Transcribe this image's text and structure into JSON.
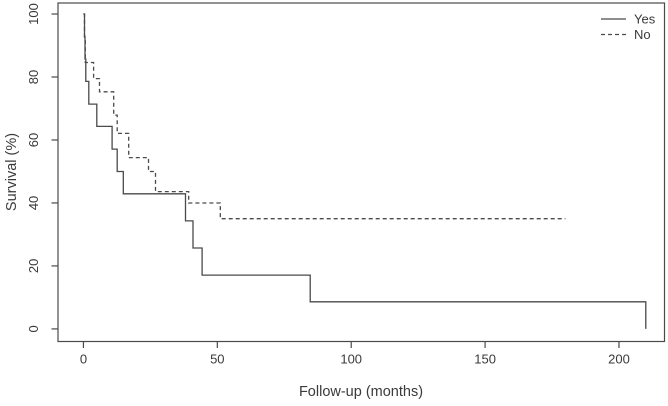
{
  "chart_data": {
    "type": "line",
    "subtype": "kaplan-meier-step-survival",
    "title": "",
    "xlabel": "Follow-up (months)",
    "ylabel": "Survival (%)",
    "xlim": [
      -9.5,
      217
    ],
    "ylim": [
      -4,
      103.5
    ],
    "xticks": [
      0,
      50,
      100,
      150,
      200
    ],
    "yticks": [
      0,
      20,
      40,
      60,
      80,
      100
    ],
    "grid": false,
    "frame": true,
    "legend": {
      "position": "top-right",
      "entries": [
        {
          "label": "Yes",
          "style": "solid"
        },
        {
          "label": "No",
          "style": "dashed"
        }
      ]
    },
    "series": [
      {
        "name": "Yes",
        "line_style": "solid",
        "color": "#4a4a4a",
        "points_note": "x = months, y = survival percent; step function drops at event times",
        "points": [
          [
            0,
            100
          ],
          [
            0.4,
            92.9
          ],
          [
            0.6,
            85.7
          ],
          [
            0.9,
            78.6
          ],
          [
            2.0,
            71.4
          ],
          [
            5.0,
            64.3
          ],
          [
            10.7,
            57.1
          ],
          [
            12.6,
            50.0
          ],
          [
            14.9,
            42.9
          ],
          [
            38.1,
            34.3
          ],
          [
            40.9,
            25.7
          ],
          [
            44.3,
            17.1
          ],
          [
            84.7,
            8.6
          ],
          [
            210,
            0
          ]
        ]
      },
      {
        "name": "No",
        "line_style": "dashed",
        "color": "#4a4a4a",
        "points_note": "x = months, y = survival percent; curve ends (censored) at 180 months",
        "points": [
          [
            0,
            100
          ],
          [
            0.4,
            92.3
          ],
          [
            0.7,
            84.6
          ],
          [
            3.8,
            79.5
          ],
          [
            6.0,
            75.3
          ],
          [
            11.3,
            67.9
          ],
          [
            12.6,
            62.1
          ],
          [
            16.9,
            54.4
          ],
          [
            24.3,
            50.0
          ],
          [
            26.9,
            43.6
          ],
          [
            39.3,
            40.0
          ],
          [
            51.1,
            35.0
          ],
          [
            180,
            35.0
          ]
        ]
      }
    ]
  },
  "colors": {
    "line": "#4a4a4a",
    "text": "#3a3a3a",
    "background": "#ffffff"
  }
}
